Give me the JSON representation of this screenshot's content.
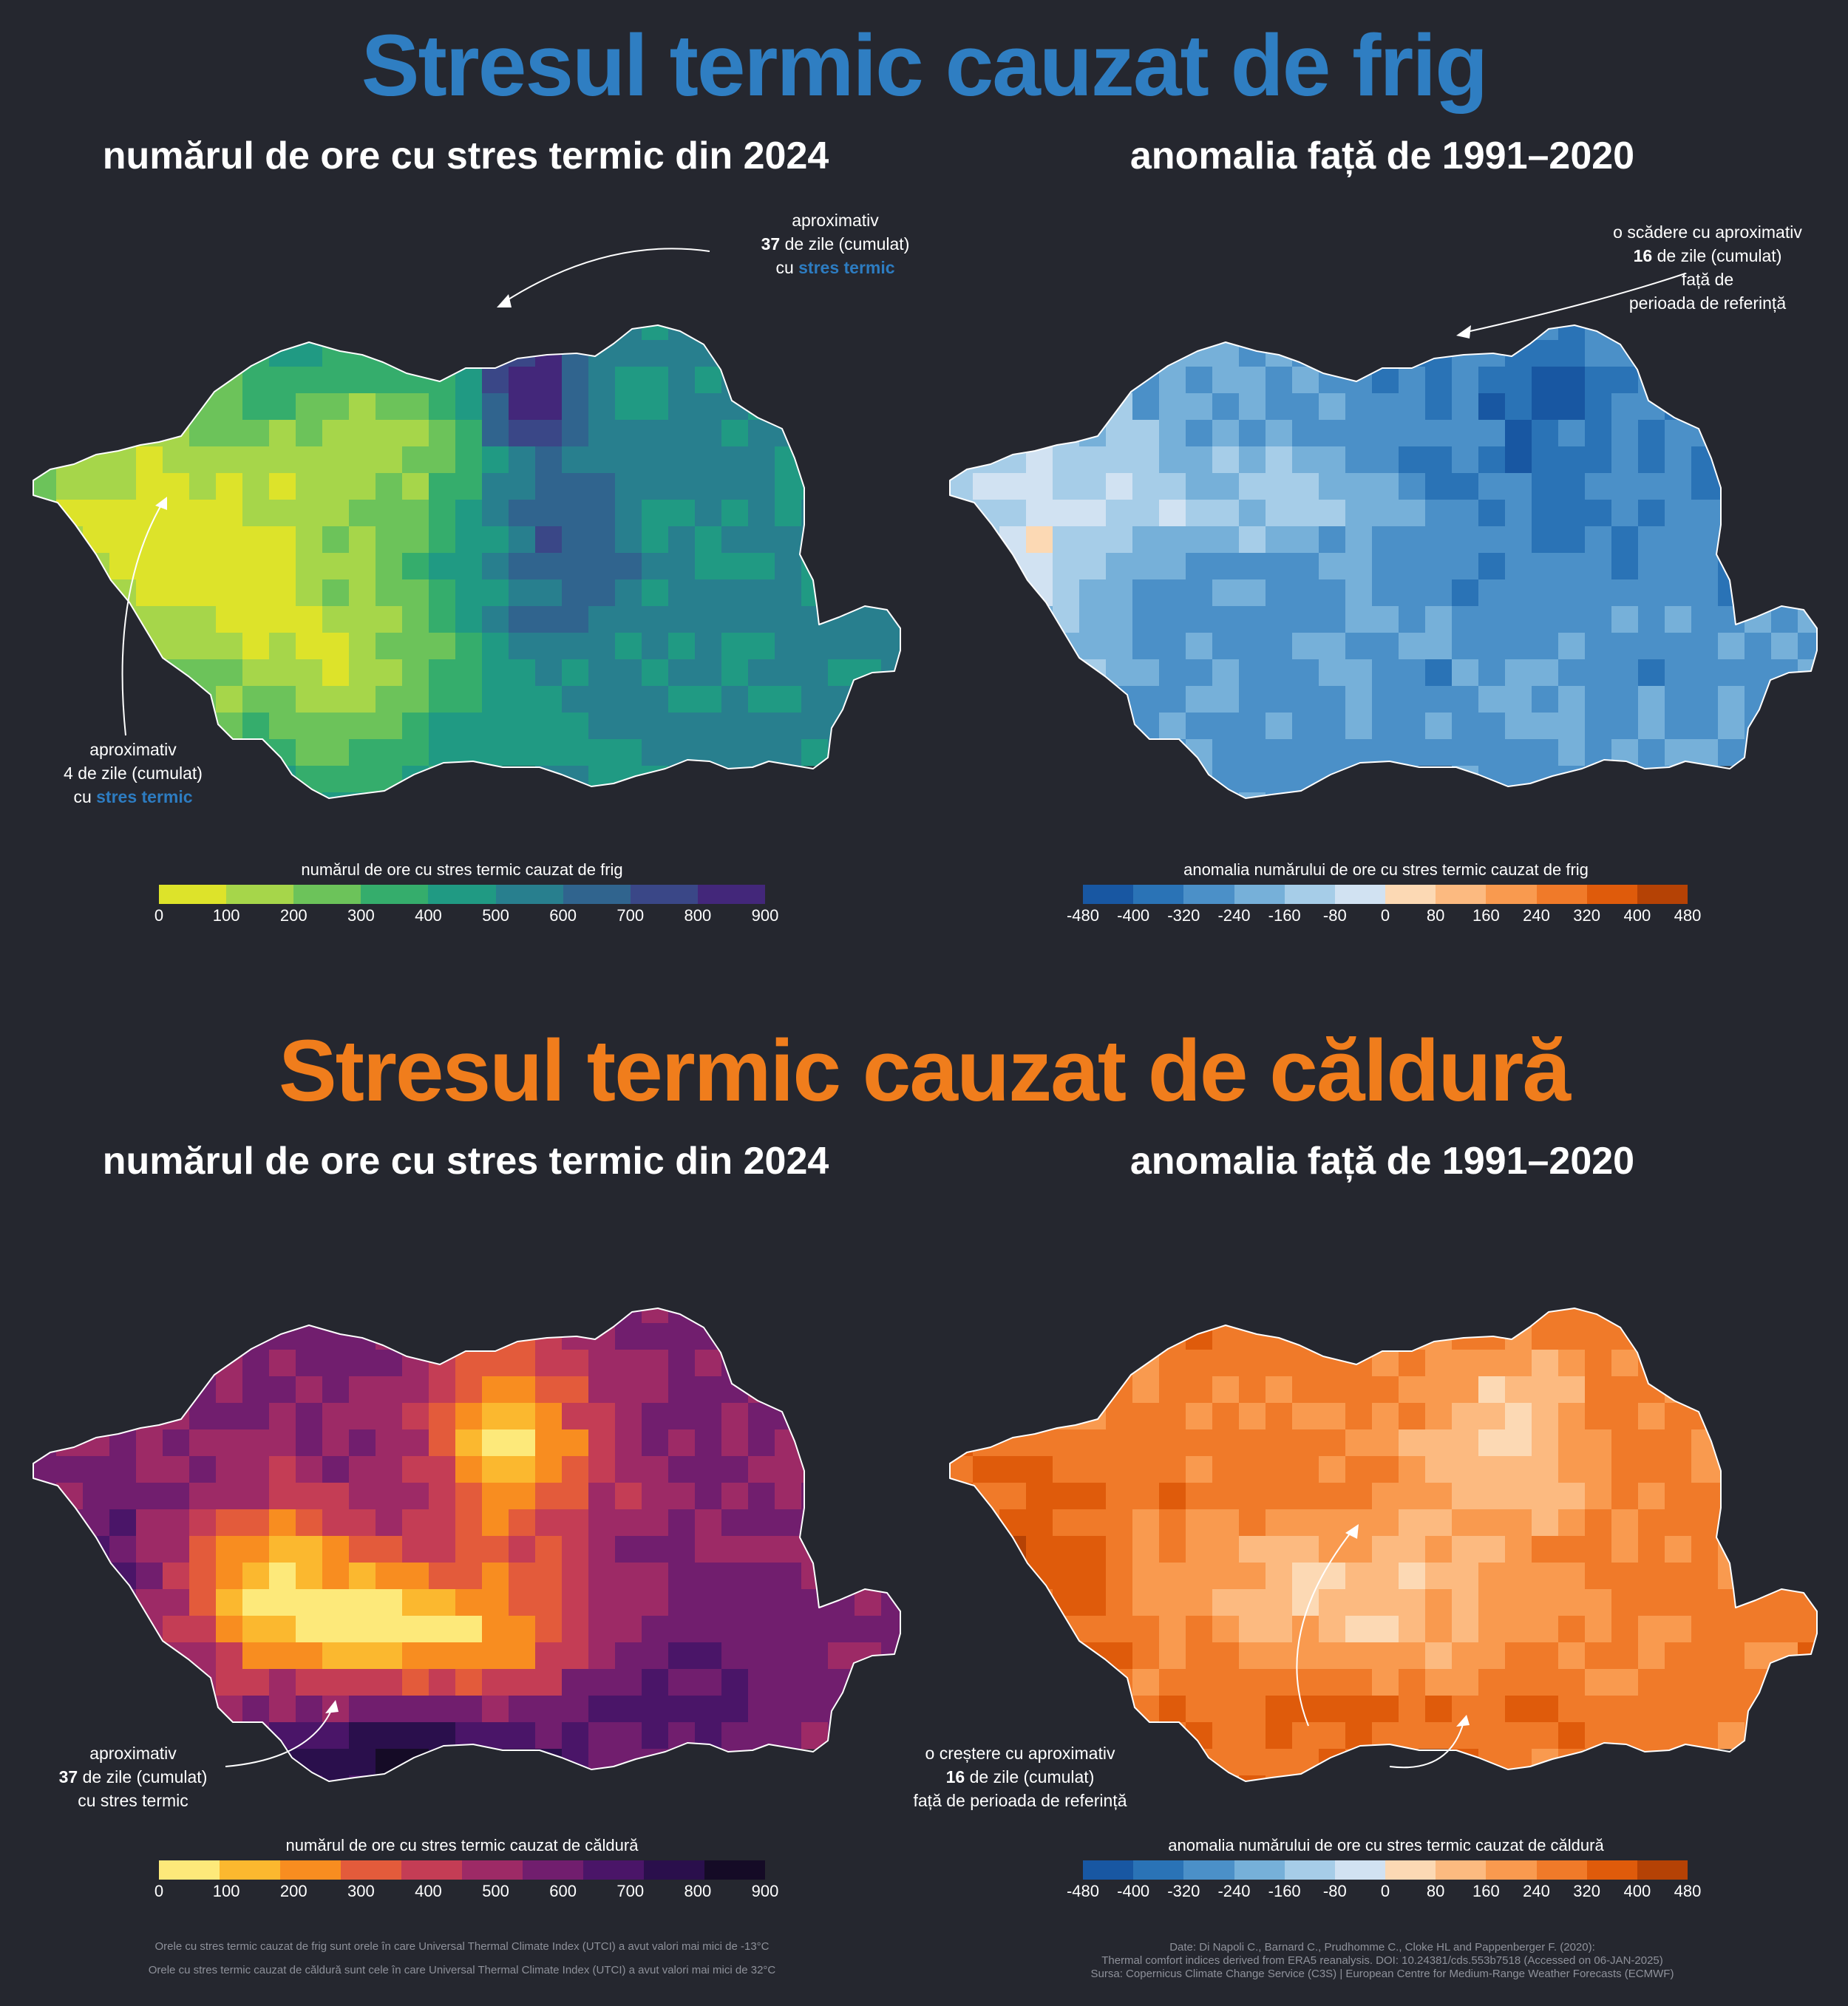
{
  "cold": {
    "title": "Stresul termic cauzat de frig",
    "title_color": "#2f7ec2",
    "left_subtitle": "numărul de ore cu stres termic din 2024",
    "right_subtitle": "anomalia față de 1991–2020",
    "note_max": {
      "l1": "aproximativ",
      "l2_bold": "37",
      "l2": " de zile (cumulat)",
      "l3": "cu ",
      "l3_hl": "stres termic"
    },
    "note_min": {
      "l1": "aproximativ",
      "l2": "4 de zile (cumulat)",
      "l3": "cu ",
      "l3_hl": "stres termic"
    },
    "note_anom": {
      "l1": "o scădere cu aproximativ",
      "l2_bold": "16",
      "l2": " de zile (cumulat)",
      "l3": "față de",
      "l4": "perioada de referință"
    },
    "legend_left_title": "numărul de ore cu stres termic cauzat de frig",
    "legend_right_title": "anomalia numărului de ore cu stres termic cauzat de frig",
    "palette_left": [
      "#dde32a",
      "#a6d64a",
      "#6cc35a",
      "#35ad6c",
      "#209a83",
      "#287f8e",
      "#30648e",
      "#3a4787",
      "#43277a"
    ],
    "palette_right": [
      "#1857a2",
      "#2a73b6",
      "#4b90c8",
      "#76b0d9",
      "#a6cde8",
      "#d1e2f2",
      "#fcd9b4",
      "#fcba80",
      "#f99a4f",
      "#f07a29",
      "#df5b0b",
      "#b54205"
    ]
  },
  "heat": {
    "title": "Stresul termic cauzat de căldură",
    "title_color": "#f07d1c",
    "left_subtitle": "numărul de ore cu stres termic din 2024",
    "right_subtitle": "anomalia față de 1991–2020",
    "note_max": {
      "l1": "aproximativ",
      "l2_bold": "37",
      "l2": " de zile (cumulat)",
      "l3": "cu stres termic"
    },
    "note_anom": {
      "l1": "o creștere cu aproximativ",
      "l2_bold": "16",
      "l2": " de zile (cumulat)",
      "l3": "față de perioada de referință"
    },
    "legend_left_title": "numărul de ore cu stres termic cauzat de căldură",
    "legend_right_title": "anomalia numărului de ore cu stres termic cauzat de căldură",
    "palette_left": [
      "#fde97a",
      "#fbb82f",
      "#f88d20",
      "#e35b3b",
      "#c43d55",
      "#9d2a66",
      "#711e6e",
      "#4a1568",
      "#2a0f4c",
      "#150b26"
    ],
    "palette_right": [
      "#1857a2",
      "#2a73b6",
      "#4b90c8",
      "#76b0d9",
      "#a6cde8",
      "#d1e2f2",
      "#fcd9b4",
      "#fcba80",
      "#f99a4f",
      "#f07a29",
      "#df5b0b",
      "#b54205"
    ]
  },
  "ticks_left": [
    "0",
    "100",
    "200",
    "300",
    "400",
    "500",
    "600",
    "700",
    "800",
    "900"
  ],
  "ticks_right": [
    "-480",
    "-400",
    "-320",
    "-240",
    "-160",
    "-80",
    "0",
    "80",
    "160",
    "240",
    "320",
    "400",
    "480"
  ],
  "footer_left": {
    "l1": "Orele cu stres termic cauzat de frig sunt orele în care Universal Thermal Climate Index (UTCI) a avut valori mai mici de -13°C",
    "l2": "Orele cu stres termic cauzat de căldură sunt cele în care Universal Thermal Climate Index (UTCI) a avut valori mai mici de 32°C"
  },
  "footer_right": {
    "l1": "Date: Di Napoli C., Barnard C., Prudhomme C., Cloke HL and Pappenberger F. (2020):",
    "l2": "Thermal comfort indices derived from ERA5 reanalysis. DOI: 10.24381/cds.553b7518 (Accessed on 06-JAN-2025)",
    "l3": "Sursa:  Copernicus Climate Change Service (C3S) | European Centre for Medium-Range Weather Forecasts (ECMWF)"
  }
}
